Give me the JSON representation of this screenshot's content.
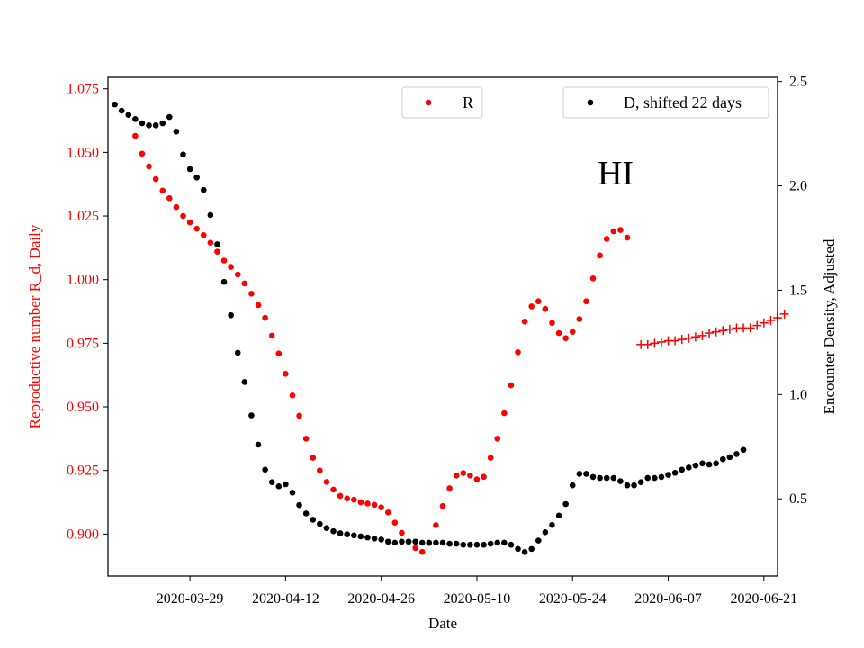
{
  "chart_data": {
    "type": "scatter",
    "title": "",
    "annotation": "HI",
    "xlabel": "Date",
    "ylabel_left": "Reproductive number R_d, Daily",
    "ylabel_right": "Encounter Density, Adjusted",
    "x_ticks": [
      "2020-03-29",
      "2020-04-12",
      "2020-04-26",
      "2020-05-10",
      "2020-05-24",
      "2020-06-07",
      "2020-06-21"
    ],
    "y_left_ticks": [
      "0.900",
      "0.925",
      "0.950",
      "0.975",
      "1.000",
      "1.025",
      "1.050",
      "1.075"
    ],
    "y_right_ticks": [
      "0.5",
      "1.0",
      "1.5",
      "2.0",
      "2.5"
    ],
    "xlim": [
      "2020-03-17",
      "2020-06-23"
    ],
    "ylim_left": [
      0.8835,
      1.0795
    ],
    "ylim_right": [
      0.13,
      2.52
    ],
    "legend": [
      {
        "label": "R",
        "color": "#ff0000",
        "marker": "dot",
        "placement": "top-center"
      },
      {
        "label": "D, shifted 22 days",
        "color": "#000000",
        "marker": "dot",
        "placement": "top-right"
      }
    ],
    "series": [
      {
        "name": "R",
        "axis": "left",
        "color": "#ff0000",
        "marker": "dot",
        "x_start": "2020-03-21",
        "values": [
          1.0565,
          1.0495,
          1.0445,
          1.0395,
          1.035,
          1.032,
          1.0285,
          1.025,
          1.0225,
          1.02,
          1.0175,
          1.0145,
          1.011,
          1.0075,
          1.005,
          1.002,
          0.9985,
          0.9945,
          0.99,
          0.985,
          0.978,
          0.971,
          0.963,
          0.9545,
          0.9465,
          0.9375,
          0.93,
          0.925,
          0.9205,
          0.9175,
          0.915,
          0.914,
          0.9135,
          0.9125,
          0.912,
          0.9115,
          0.9105,
          0.9085,
          0.9045,
          0.9005,
          0.897,
          0.8945,
          0.893,
          0.8965,
          0.9035,
          0.911,
          0.918,
          0.923,
          0.924,
          0.923,
          0.9215,
          0.9225,
          0.93,
          0.9375,
          0.9475,
          0.9585,
          0.9715,
          0.9835,
          0.9895,
          0.9915,
          0.9885,
          0.983,
          0.979,
          0.977,
          0.9795,
          0.9845,
          0.9915,
          1.0005,
          1.0095,
          1.016,
          1.019,
          1.0195,
          1.0165
        ]
      },
      {
        "name": "R (projected)",
        "axis": "left",
        "color": "#ff0000",
        "marker": "plus",
        "x_start": "2020-06-03",
        "values": [
          0.9745,
          0.9745,
          0.975,
          0.9755,
          0.976,
          0.976,
          0.9765,
          0.977,
          0.9775,
          0.978,
          0.979,
          0.9795,
          0.98,
          0.9805,
          0.981,
          0.981,
          0.981,
          0.982,
          0.983,
          0.984,
          0.985,
          0.9865
        ]
      },
      {
        "name": "D, shifted 22 days",
        "axis": "right",
        "color": "#000000",
        "marker": "dot",
        "x_start": "2020-03-18",
        "values": [
          2.39,
          2.36,
          2.34,
          2.32,
          2.3,
          2.29,
          2.29,
          2.3,
          2.33,
          2.26,
          2.15,
          2.08,
          2.04,
          1.98,
          1.86,
          1.72,
          1.54,
          1.38,
          1.2,
          1.06,
          0.9,
          0.76,
          0.64,
          0.58,
          0.56,
          0.57,
          0.53,
          0.47,
          0.43,
          0.4,
          0.38,
          0.36,
          0.345,
          0.335,
          0.33,
          0.325,
          0.32,
          0.315,
          0.31,
          0.305,
          0.295,
          0.29,
          0.295,
          0.295,
          0.295,
          0.29,
          0.29,
          0.29,
          0.29,
          0.285,
          0.285,
          0.28,
          0.28,
          0.28,
          0.28,
          0.285,
          0.29,
          0.29,
          0.28,
          0.26,
          0.245,
          0.26,
          0.3,
          0.34,
          0.375,
          0.42,
          0.475,
          0.565,
          0.62,
          0.62,
          0.605,
          0.6,
          0.6,
          0.6,
          0.585,
          0.565,
          0.565,
          0.58,
          0.6,
          0.6,
          0.605,
          0.615,
          0.625,
          0.64,
          0.65,
          0.66,
          0.67,
          0.665,
          0.67,
          0.69,
          0.7,
          0.715,
          0.735
        ]
      }
    ]
  }
}
